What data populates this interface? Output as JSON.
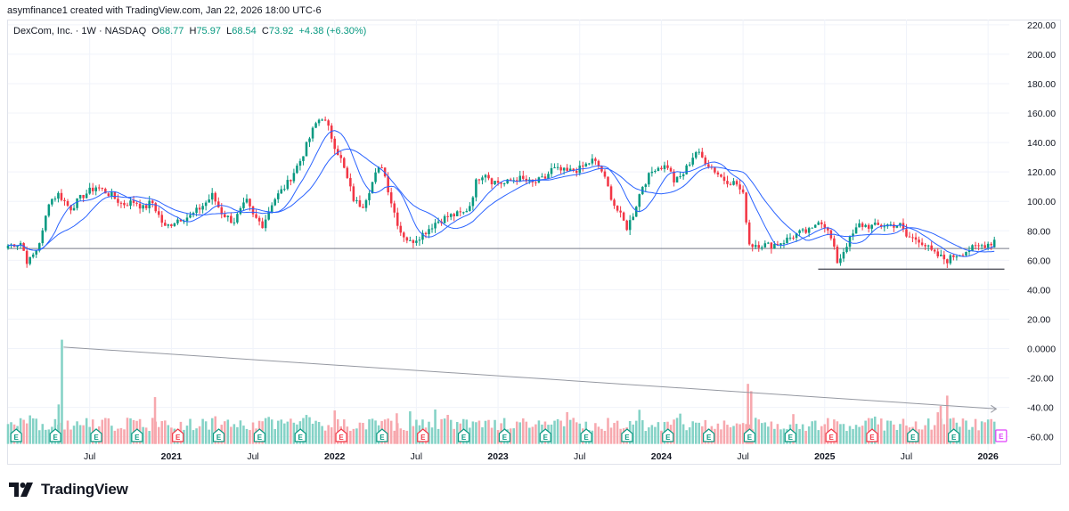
{
  "attribution": "asymfinance1 created with TradingView.com, Jan 22, 2026 18:00 UTC-6",
  "legend": {
    "symbol": "DexCom, Inc. · 1W · NASDAQ",
    "o_label": "O",
    "o": "68.77",
    "h_label": "H",
    "h": "75.97",
    "l_label": "L",
    "l": "68.54",
    "c_label": "C",
    "c": "73.92",
    "change": "+4.38 (+6.30%)"
  },
  "brand": {
    "name": "TradingView",
    "logo": "tradingview-logo-icon"
  },
  "colors": {
    "up": "#089981",
    "down": "#f23645",
    "vol_up": "#84d2c6",
    "vol_down": "#f7a8ae",
    "ma": "#2962ff",
    "grid": "#f0f3fa",
    "line": "#787b86"
  },
  "chart_data": {
    "type": "candlestick",
    "title": "DexCom, Inc. · 1W · NASDAQ",
    "y_axis": {
      "ticks": [
        "220.00",
        "200.00",
        "180.00",
        "160.00",
        "140.00",
        "120.00",
        "100.00",
        "80.00",
        "60.00",
        "40.00",
        "20.00",
        "0.0000",
        "-20.00",
        "-40.00",
        "-60.00"
      ],
      "tick_values": [
        220,
        200,
        180,
        160,
        140,
        120,
        100,
        80,
        60,
        40,
        20,
        0,
        -20,
        -40,
        -60
      ],
      "range": [
        -70,
        230
      ]
    },
    "x_axis": {
      "ticks": [
        "Jul",
        "2021",
        "Jul",
        "2022",
        "Jul",
        "2023",
        "Jul",
        "2024",
        "Jul",
        "2025",
        "Jul",
        "2026"
      ],
      "tick_dates": [
        2020.5,
        2021.0,
        2021.5,
        2022.0,
        2022.5,
        2023.0,
        2023.5,
        2024.0,
        2024.5,
        2025.0,
        2025.5,
        2026.0
      ],
      "bold": [
        "2021",
        "2022",
        "2023",
        "2024",
        "2025",
        "2026"
      ],
      "range": [
        2020.0,
        2026.13
      ]
    },
    "price_path": [
      [
        2020.0,
        70
      ],
      [
        2020.08,
        72
      ],
      [
        2020.12,
        58
      ],
      [
        2020.17,
        66
      ],
      [
        2020.21,
        78
      ],
      [
        2020.25,
        100
      ],
      [
        2020.31,
        105
      ],
      [
        2020.38,
        95
      ],
      [
        2020.46,
        104
      ],
      [
        2020.54,
        110
      ],
      [
        2020.62,
        105
      ],
      [
        2020.7,
        98
      ],
      [
        2020.78,
        100
      ],
      [
        2020.83,
        95
      ],
      [
        2020.88,
        100
      ],
      [
        2020.96,
        82
      ],
      [
        2021.04,
        88
      ],
      [
        2021.12,
        90
      ],
      [
        2021.21,
        99
      ],
      [
        2021.25,
        104
      ],
      [
        2021.31,
        92
      ],
      [
        2021.38,
        86
      ],
      [
        2021.46,
        100
      ],
      [
        2021.5,
        90
      ],
      [
        2021.56,
        84
      ],
      [
        2021.62,
        100
      ],
      [
        2021.71,
        112
      ],
      [
        2021.79,
        128
      ],
      [
        2021.88,
        152
      ],
      [
        2021.92,
        158
      ],
      [
        2021.96,
        150
      ],
      [
        2022.0,
        138
      ],
      [
        2022.04,
        128
      ],
      [
        2022.12,
        100
      ],
      [
        2022.17,
        97
      ],
      [
        2022.25,
        118
      ],
      [
        2022.29,
        125
      ],
      [
        2022.35,
        98
      ],
      [
        2022.4,
        80
      ],
      [
        2022.46,
        72
      ],
      [
        2022.54,
        78
      ],
      [
        2022.62,
        86
      ],
      [
        2022.7,
        90
      ],
      [
        2022.79,
        92
      ],
      [
        2022.83,
        98
      ],
      [
        2022.87,
        115
      ],
      [
        2022.92,
        120
      ],
      [
        2022.96,
        114
      ],
      [
        2023.04,
        112
      ],
      [
        2023.12,
        116
      ],
      [
        2023.21,
        112
      ],
      [
        2023.29,
        116
      ],
      [
        2023.33,
        122
      ],
      [
        2023.42,
        120
      ],
      [
        2023.5,
        122
      ],
      [
        2023.58,
        128
      ],
      [
        2023.63,
        122
      ],
      [
        2023.71,
        98
      ],
      [
        2023.79,
        82
      ],
      [
        2023.83,
        92
      ],
      [
        2023.88,
        110
      ],
      [
        2023.96,
        123
      ],
      [
        2024.04,
        124
      ],
      [
        2024.08,
        113
      ],
      [
        2024.13,
        118
      ],
      [
        2024.21,
        134
      ],
      [
        2024.29,
        125
      ],
      [
        2024.38,
        115
      ],
      [
        2024.46,
        112
      ],
      [
        2024.5,
        104
      ],
      [
        2024.54,
        70
      ],
      [
        2024.58,
        71
      ],
      [
        2024.67,
        70
      ],
      [
        2024.75,
        73
      ],
      [
        2024.83,
        78
      ],
      [
        2024.92,
        80
      ],
      [
        2024.96,
        88
      ],
      [
        2025.0,
        84
      ],
      [
        2025.04,
        74
      ],
      [
        2025.08,
        58
      ],
      [
        2025.13,
        70
      ],
      [
        2025.21,
        84
      ],
      [
        2025.29,
        83
      ],
      [
        2025.38,
        84
      ],
      [
        2025.46,
        84
      ],
      [
        2025.5,
        76
      ],
      [
        2025.58,
        74
      ],
      [
        2025.67,
        64
      ],
      [
        2025.75,
        60
      ],
      [
        2025.79,
        63
      ],
      [
        2025.88,
        67
      ],
      [
        2025.96,
        70
      ],
      [
        2026.02,
        72
      ],
      [
        2026.05,
        74
      ]
    ],
    "last": {
      "open": 68.77,
      "high": 75.97,
      "low": 68.54,
      "close": 73.92
    },
    "moving_averages": [
      {
        "name": "short MA",
        "color": "#2962ff"
      },
      {
        "name": "long MA",
        "color": "#2962ff"
      }
    ],
    "horizontal_lines": [
      {
        "value": 68,
        "color": "#787b86",
        "span": "full"
      },
      {
        "value": 54,
        "color": "#131722",
        "from": 2024.96,
        "to": 2026.1
      }
    ],
    "trend_line": {
      "from": [
        2020.34,
        1
      ],
      "to": [
        2026.05,
        -41
      ],
      "color": "#9598a1"
    },
    "volume_baseline": -60,
    "volume_spikes": [
      {
        "x": 2020.33,
        "value": 6,
        "dir": "up"
      },
      {
        "x": 2020.31,
        "value": -38,
        "dir": "up"
      },
      {
        "x": 2020.9,
        "value": -33,
        "dir": "down"
      },
      {
        "x": 2022.38,
        "value": -44,
        "dir": "down"
      },
      {
        "x": 2024.53,
        "value": -24,
        "dir": "down"
      },
      {
        "x": 2024.55,
        "value": -29,
        "dir": "down"
      },
      {
        "x": 2025.75,
        "value": -32,
        "dir": "down"
      },
      {
        "x": 2025.71,
        "value": -39,
        "dir": "down"
      }
    ],
    "earnings_markers": {
      "label": "E",
      "items": [
        {
          "x": 2020.05,
          "type": "beat"
        },
        {
          "x": 2020.29,
          "type": "beat"
        },
        {
          "x": 2020.54,
          "type": "beat"
        },
        {
          "x": 2020.79,
          "type": "beat"
        },
        {
          "x": 2021.04,
          "type": "miss"
        },
        {
          "x": 2021.29,
          "type": "beat"
        },
        {
          "x": 2021.54,
          "type": "beat"
        },
        {
          "x": 2021.79,
          "type": "beat"
        },
        {
          "x": 2022.04,
          "type": "miss"
        },
        {
          "x": 2022.29,
          "type": "beat"
        },
        {
          "x": 2022.54,
          "type": "miss"
        },
        {
          "x": 2022.79,
          "type": "beat"
        },
        {
          "x": 2023.04,
          "type": "beat"
        },
        {
          "x": 2023.29,
          "type": "beat"
        },
        {
          "x": 2023.54,
          "type": "beat"
        },
        {
          "x": 2023.79,
          "type": "beat"
        },
        {
          "x": 2024.04,
          "type": "beat"
        },
        {
          "x": 2024.29,
          "type": "beat"
        },
        {
          "x": 2024.54,
          "type": "beat"
        },
        {
          "x": 2024.79,
          "type": "beat"
        },
        {
          "x": 2025.04,
          "type": "miss"
        },
        {
          "x": 2025.29,
          "type": "miss"
        },
        {
          "x": 2025.54,
          "type": "beat"
        },
        {
          "x": 2025.79,
          "type": "beat"
        },
        {
          "x": 2026.08,
          "type": "upcoming"
        }
      ]
    }
  }
}
